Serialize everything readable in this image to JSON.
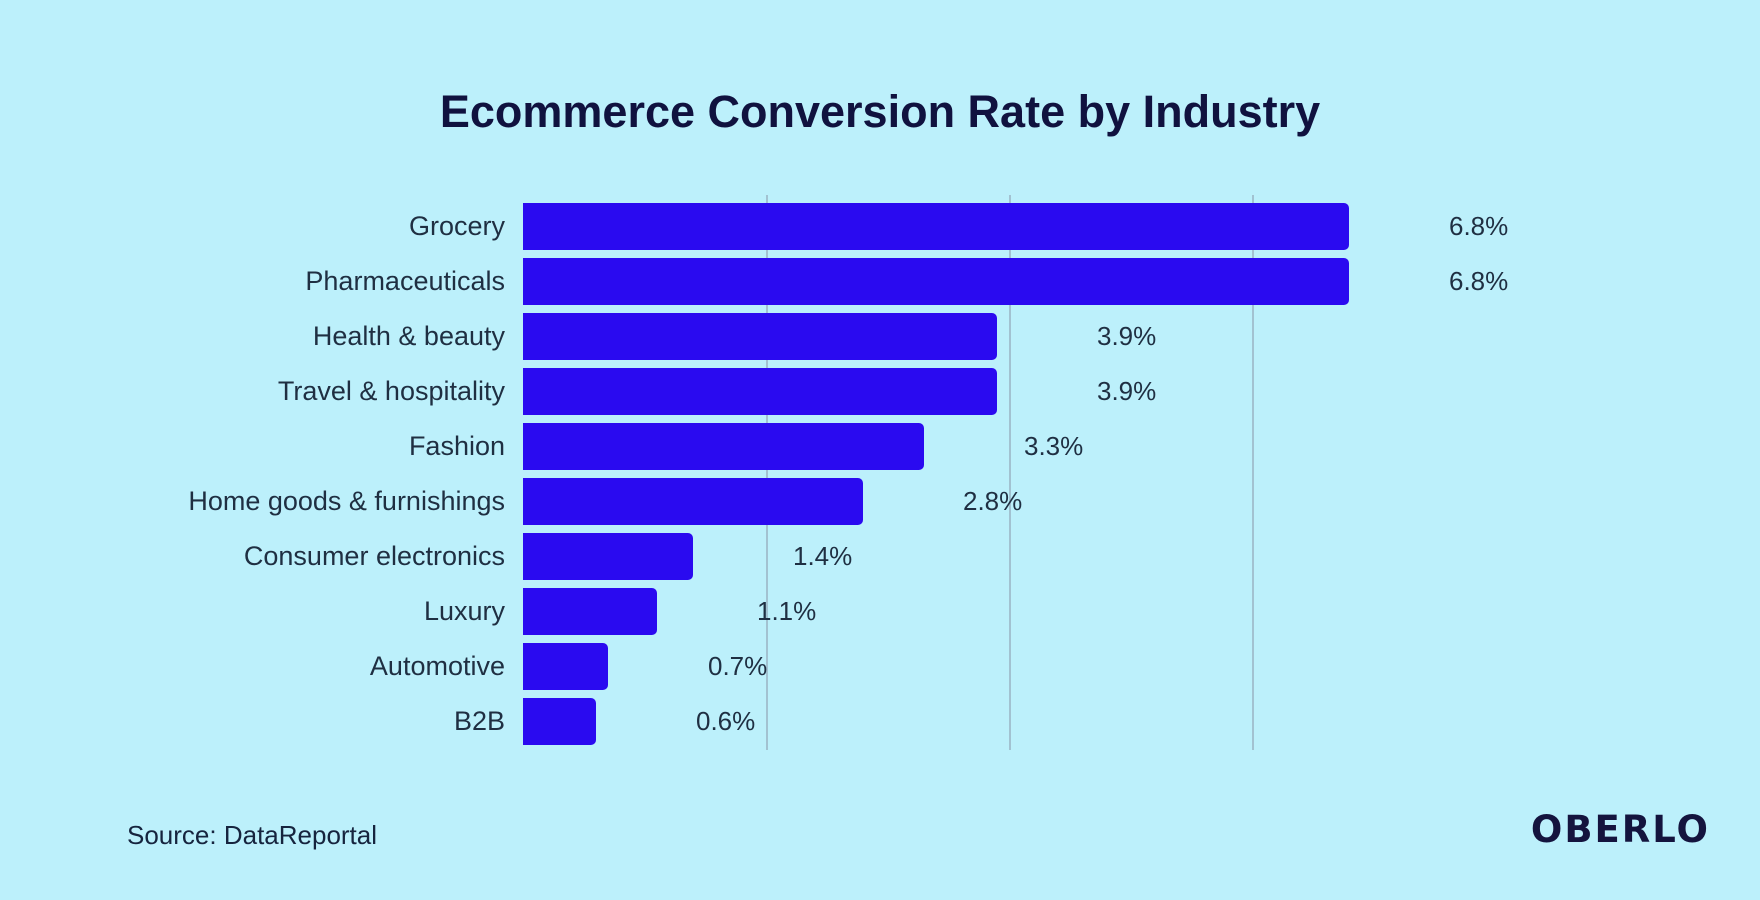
{
  "title": "Ecommerce Conversion Rate by Industry",
  "source": {
    "text": "Source: DataReportal"
  },
  "brand": {
    "text": "OBERLO"
  },
  "colors": {
    "background": "#bcf0fb",
    "bar": "#2a0af0",
    "title_text": "#10123f",
    "label_text": "#1f2f42",
    "gridline": "#a2c2d1"
  },
  "chart_data": {
    "type": "bar",
    "orientation": "horizontal",
    "title": "Ecommerce Conversion Rate by Industry",
    "categories": [
      "Grocery",
      "Pharmaceuticals",
      "Health & beauty",
      "Travel & hospitality",
      "Fashion",
      "Home goods & furnishings",
      "Consumer electronics",
      "Luxury",
      "Automotive",
      "B2B"
    ],
    "values": [
      6.8,
      6.8,
      3.9,
      3.9,
      3.3,
      2.8,
      1.4,
      1.1,
      0.7,
      0.6
    ],
    "value_labels": [
      "6.8%",
      "6.8%",
      "3.9%",
      "3.9%",
      "3.3%",
      "2.8%",
      "1.4%",
      "1.1%",
      "0.7%",
      "0.6%"
    ],
    "unit": "%",
    "xlim": [
      0,
      7
    ],
    "gridlines_percent": [
      2,
      4,
      6
    ],
    "grid": true,
    "legend": false,
    "value_labels_shown": true
  }
}
